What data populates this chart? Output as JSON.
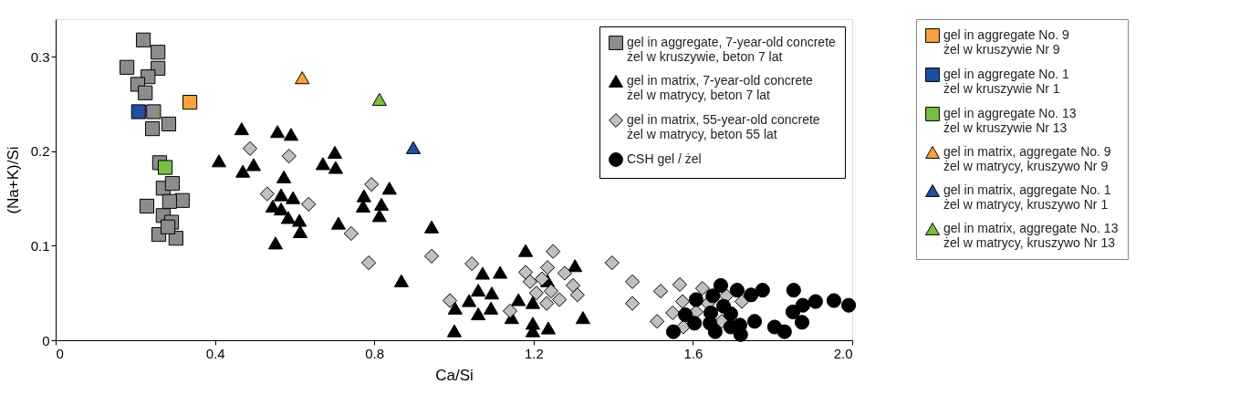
{
  "chart_data": {
    "type": "scatter",
    "xlabel": "Ca/Si",
    "ylabel": "(Na+K)/Si",
    "xlim": [
      0,
      2.0
    ],
    "ylim": [
      0,
      0.34
    ],
    "xticks": [
      0,
      0.4,
      0.8,
      1.2,
      1.6,
      {
        "value": 2.0,
        "label": "2.0"
      }
    ],
    "yticks": [
      0,
      0.1,
      0.2,
      0.3
    ],
    "grid": false,
    "legend": [
      "top right",
      "right"
    ],
    "series": [
      {
        "name": "gel in aggregate, 7-year-old concrete\nżel w kruszywie, beton 7 lat",
        "color": "#8c8c8c",
        "marker": "square",
        "x": [
          0.22,
          0.257,
          0.179,
          0.257,
          0.232,
          0.206,
          0.225,
          0.246,
          null,
          0.284,
          0.243,
          0.261,
          null,
          0.27,
          0.293,
          0.318,
          0.229,
          0.286,
          0.27,
          0.291,
          0.259,
          0.302,
          0.282
        ],
        "values": [
          0.318,
          0.305,
          0.289,
          0.288,
          0.279,
          0.271,
          0.262,
          0.242,
          null,
          0.229,
          0.224,
          0.188,
          null,
          0.161,
          0.166,
          0.148,
          0.142,
          0.147,
          0.132,
          0.125,
          0.112,
          0.108,
          0.12
        ]
      },
      {
        "name": "gel in matrix, 7-year-old concrete\nżel w matrycy, beton 7 lat",
        "color": "#000000",
        "marker": "triangle",
        "x": [
          0.467,
          0.557,
          0.591,
          0.41,
          0.47,
          0.497,
          0.573,
          0.566,
          0.596,
          0.545,
          0.566,
          0.584,
          0.612,
          0.614,
          0.552,
          null,
          0.701,
          0.703,
          0.671,
          0.838,
          0.774,
          0.772,
          0.818,
          0.813,
          0.71,
          0.944,
          0.868,
          1.18,
          1.304,
          1.072,
          1.116,
          1.061,
          1.095,
          1.038,
          1.003,
          1.093,
          1.061,
          1.001,
          1.235,
          1.162,
          1.198,
          1.145,
          1.198,
          1.237,
          1.198,
          1.324
        ],
        "values": [
          0.224,
          0.221,
          0.218,
          0.19,
          0.179,
          0.186,
          0.173,
          0.154,
          0.151,
          0.142,
          0.139,
          0.13,
          0.127,
          0.115,
          0.103,
          null,
          0.199,
          0.183,
          0.187,
          0.161,
          0.153,
          0.142,
          0.144,
          0.132,
          0.124,
          0.12,
          0.063,
          0.095,
          0.079,
          0.071,
          0.072,
          0.053,
          0.05,
          0.042,
          0.034,
          0.034,
          0.028,
          0.01,
          0.063,
          0.043,
          0.04,
          0.024,
          0.018,
          0.013,
          0.01,
          0.024
        ]
      },
      {
        "name": "gel in matrix, 55-year-old concrete\nżel w matrycy, beton 55 lat",
        "color": "#c0c0c0",
        "marker": "diamond",
        "x": [
          0.488,
          0.586,
          0.531,
          0.635,
          0.793,
          0.742,
          0.786,
          0.944,
          1.045,
          0.99,
          1.249,
          1.18,
          1.235,
          1.278,
          1.191,
          1.221,
          1.299,
          1.31,
          1.207,
          1.244,
          1.265,
          1.233,
          1.141,
          1.397,
          1.448,
          1.448,
          1.519,
          1.567,
          1.624,
          1.51,
          1.574,
          1.549,
          1.608,
          1.638,
          1.684,
          1.723,
          1.672,
          1.576
        ],
        "values": [
          0.203,
          0.195,
          0.155,
          0.144,
          0.165,
          0.113,
          0.082,
          0.089,
          0.081,
          0.042,
          0.094,
          0.072,
          0.077,
          0.071,
          0.062,
          0.065,
          0.058,
          0.048,
          0.05,
          0.052,
          0.043,
          0.039,
          0.031,
          0.082,
          0.062,
          0.039,
          0.052,
          0.059,
          0.055,
          0.02,
          0.041,
          0.029,
          0.03,
          0.039,
          0.047,
          0.041,
          0.02,
          0.014
        ]
      },
      {
        "name": "CSH gel / żel",
        "color": "#000000",
        "marker": "circle",
        "x": [
          1.67,
          1.711,
          1.746,
          1.775,
          1.608,
          1.65,
          1.581,
          1.604,
          1.551,
          1.645,
          1.643,
          1.656,
          1.677,
          1.695,
          1.695,
          1.718,
          1.72,
          1.755,
          1.805,
          1.83,
          1.853,
          1.876,
          1.851,
          1.874,
          1.908,
          1.954,
          1.991
        ],
        "values": [
          0.058,
          0.053,
          0.048,
          0.053,
          0.043,
          0.047,
          0.027,
          0.018,
          0.009,
          0.029,
          0.018,
          0.009,
          0.036,
          0.028,
          0.014,
          0.016,
          0.006,
          0.02,
          0.014,
          0.009,
          0.053,
          0.037,
          0.03,
          0.019,
          0.041,
          0.042,
          0.037
        ]
      },
      {
        "name": "gel in aggregate No. 9\nżel w kruszywie Nr 9",
        "color": "#f7a23c",
        "marker": "square",
        "x": [
          0.337
        ],
        "values": [
          0.252
        ]
      },
      {
        "name": "gel in aggregate No. 1\nżel w kruszywie Nr 1",
        "color": "#1f4fa3",
        "marker": "square",
        "x": [
          0.208
        ],
        "values": [
          0.242
        ]
      },
      {
        "name": "gel in aggregate No. 13\nżel w kruszywie Nr 13",
        "color": "#78bf43",
        "marker": "square",
        "x": [
          0.275
        ],
        "values": [
          0.183
        ]
      },
      {
        "name": "gel in matrix, aggregate No. 9\nżel w matrycy, kruszywo Nr 9",
        "color": "#f7a23c",
        "marker": "triangle",
        "x": [
          0.619
        ],
        "values": [
          0.278
        ]
      },
      {
        "name": "gel in matrix, aggregate No. 1\nżel w matrycy, kruszywo Nr 1",
        "color": "#1f4fa3",
        "marker": "triangle",
        "x": [
          0.898
        ],
        "values": [
          0.204
        ]
      },
      {
        "name": "gel in matrix, aggregate No. 13\nżel w matrycy, kruszywo Nr 13",
        "color": "#78bf43",
        "marker": "triangle",
        "x": [
          0.813
        ],
        "values": [
          0.255
        ]
      }
    ]
  }
}
